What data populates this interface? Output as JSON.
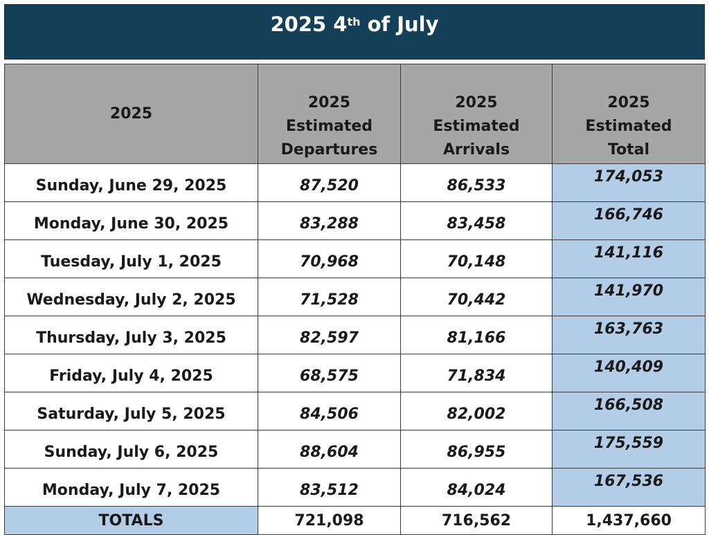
{
  "title": {
    "prefix": "2025 4",
    "superscript": "th",
    "suffix": " of July"
  },
  "headers": [
    [
      "2025"
    ],
    [
      "2025",
      "Estimated",
      "Departures"
    ],
    [
      "2025",
      "Estimated",
      "Arrivals"
    ],
    [
      "2025",
      "Estimated",
      "Total"
    ]
  ],
  "rows": [
    {
      "date": "Sunday, June 29, 2025",
      "departures": "87,520",
      "arrivals": "86,533",
      "total": "174,053"
    },
    {
      "date": "Monday, June 30, 2025",
      "departures": "83,288",
      "arrivals": "83,458",
      "total": "166,746"
    },
    {
      "date": "Tuesday, July 1, 2025",
      "departures": "70,968",
      "arrivals": "70,148",
      "total": "141,116"
    },
    {
      "date": "Wednesday, July 2, 2025",
      "departures": "71,528",
      "arrivals": "70,442",
      "total": "141,970"
    },
    {
      "date": "Thursday, July 3, 2025",
      "departures": "82,597",
      "arrivals": "81,166",
      "total": "163,763"
    },
    {
      "date": "Friday, July 4, 2025",
      "departures": "68,575",
      "arrivals": "71,834",
      "total": "140,409"
    },
    {
      "date": "Saturday, July 5, 2025",
      "departures": "84,506",
      "arrivals": "82,002",
      "total": "166,508"
    },
    {
      "date": "Sunday, July 6, 2025",
      "departures": "88,604",
      "arrivals": "86,955",
      "total": "175,559"
    },
    {
      "date": "Monday, July 7, 2025",
      "departures": "83,512",
      "arrivals": "84,024",
      "total": "167,536"
    }
  ],
  "totals": {
    "label": "TOTALS",
    "departures": "721,098",
    "arrivals": "716,562",
    "total": "1,437,660"
  },
  "colors": {
    "title_bg": "#14405a",
    "header_bg": "#a6a6a6",
    "highlight_bg": "#b4cde6"
  }
}
